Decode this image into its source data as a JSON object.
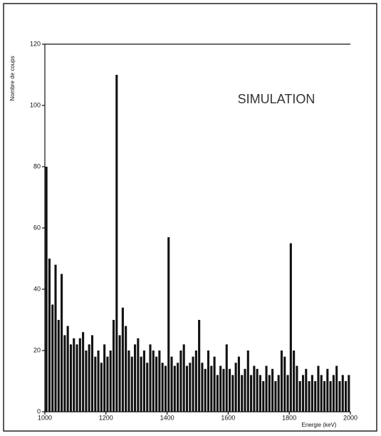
{
  "chart_data": {
    "type": "histogram",
    "y_label": "Nombre de coups",
    "x_label": "Energie (keV)",
    "annotation": "SIMULATION",
    "color": "#111111",
    "bins": [
      1000,
      1010,
      1020,
      1030,
      1040,
      1050,
      1060,
      1070,
      1080,
      1090,
      1100,
      1110,
      1120,
      1130,
      1140,
      1150,
      1160,
      1170,
      1180,
      1190,
      1200,
      1210,
      1220,
      1230,
      1240,
      1250,
      1260,
      1270,
      1280,
      1290,
      1300,
      1310,
      1320,
      1330,
      1340,
      1350,
      1360,
      1370,
      1380,
      1390,
      1400,
      1410,
      1420,
      1430,
      1440,
      1450,
      1460,
      1470,
      1480,
      1490,
      1500,
      1510,
      1520,
      1530,
      1540,
      1550,
      1560,
      1570,
      1580,
      1590,
      1600,
      1610,
      1620,
      1630,
      1640,
      1650,
      1660,
      1670,
      1680,
      1690,
      1700,
      1710,
      1720,
      1730,
      1740,
      1750,
      1760,
      1770,
      1780,
      1790,
      1800,
      1810,
      1820,
      1830,
      1840,
      1850,
      1860,
      1870,
      1880,
      1890,
      1900,
      1910,
      1920,
      1930,
      1940,
      1950,
      1960,
      1970,
      1980,
      1990,
      2000
    ],
    "values": [
      80,
      50,
      35,
      48,
      30,
      45,
      25,
      28,
      22,
      24,
      22,
      24,
      26,
      20,
      22,
      25,
      18,
      20,
      16,
      22,
      18,
      20,
      30,
      110,
      25,
      34,
      28,
      20,
      18,
      22,
      24,
      18,
      20,
      16,
      22,
      20,
      18,
      20,
      16,
      15,
      57,
      18,
      15,
      16,
      20,
      22,
      15,
      16,
      18,
      20,
      30,
      16,
      14,
      20,
      15,
      18,
      12,
      15,
      14,
      22,
      14,
      12,
      16,
      18,
      12,
      14,
      20,
      12,
      15,
      14,
      12,
      10,
      15,
      12,
      14,
      10,
      12,
      20,
      18,
      12,
      55,
      20,
      15,
      10,
      12,
      14,
      10,
      12,
      10,
      15,
      12,
      10,
      14,
      10,
      12,
      15,
      10,
      12,
      10,
      12
    ],
    "xlim": [
      1000,
      2000
    ],
    "ylim": [
      0,
      120
    ],
    "xticks": [
      1000,
      1200,
      1400,
      1600,
      1800,
      2000
    ],
    "yticks": [
      0,
      20,
      40,
      60,
      80,
      100,
      120
    ]
  }
}
